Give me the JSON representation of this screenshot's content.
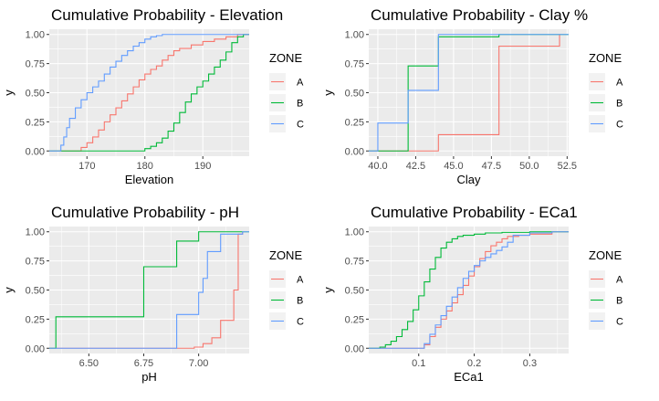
{
  "colors": {
    "A": "#F8766D",
    "B": "#00BA38",
    "C": "#619CFF",
    "panel_bg": "#EBEBEB",
    "grid": "#FFFFFF"
  },
  "chart_data": [
    {
      "type": "line",
      "subtype": "ecdf-step",
      "title": "Cumulative Probability - Elevation",
      "xlabel": "Elevation",
      "ylabel": "y",
      "xlim": [
        163.5,
        198
      ],
      "ylim": [
        0,
        1
      ],
      "xticks": [
        170,
        180,
        190
      ],
      "xtick_labels": [
        "170",
        "180",
        "190"
      ],
      "yticks": [
        0,
        0.25,
        0.5,
        0.75,
        1
      ],
      "ytick_labels": [
        "0.00",
        "0.25",
        "0.50",
        "0.75",
        "1.00"
      ],
      "legend_title": "ZONE",
      "series": [
        {
          "name": "A",
          "x": [
            163.5,
            168,
            169,
            170,
            171,
            172,
            173,
            174,
            175,
            176,
            177,
            178,
            179,
            180,
            181,
            182,
            183,
            184,
            185,
            186,
            188,
            190,
            192,
            194,
            196,
            198
          ],
          "values": [
            0,
            0,
            0.03,
            0.07,
            0.12,
            0.18,
            0.25,
            0.31,
            0.37,
            0.43,
            0.49,
            0.55,
            0.61,
            0.66,
            0.7,
            0.73,
            0.78,
            0.82,
            0.86,
            0.88,
            0.91,
            0.94,
            0.96,
            0.98,
            1.0,
            1.0
          ]
        },
        {
          "name": "B",
          "x": [
            163.5,
            178,
            180,
            181,
            182,
            183,
            184,
            185,
            186,
            187,
            188,
            189,
            190,
            191,
            192,
            193,
            194,
            195,
            196,
            197,
            198
          ],
          "values": [
            0,
            0,
            0.02,
            0.04,
            0.07,
            0.11,
            0.17,
            0.24,
            0.33,
            0.42,
            0.49,
            0.55,
            0.6,
            0.66,
            0.72,
            0.78,
            0.85,
            0.93,
            0.98,
            1.0,
            1.0
          ]
        },
        {
          "name": "C",
          "x": [
            163.5,
            164.8,
            165.5,
            166,
            166.5,
            167,
            168,
            169,
            170,
            171,
            172,
            173,
            174,
            175,
            176,
            177,
            178,
            179,
            180,
            181,
            182,
            183,
            184,
            198
          ],
          "values": [
            0,
            0,
            0.05,
            0.12,
            0.2,
            0.28,
            0.37,
            0.44,
            0.5,
            0.55,
            0.6,
            0.66,
            0.72,
            0.77,
            0.82,
            0.86,
            0.9,
            0.93,
            0.96,
            0.98,
            0.99,
            1.0,
            1.0,
            1.0
          ]
        }
      ]
    },
    {
      "type": "line",
      "subtype": "ecdf-step",
      "title": "Cumulative Probability - Clay %",
      "xlabel": "Clay",
      "ylabel": "y",
      "xlim": [
        39.4,
        52.6
      ],
      "ylim": [
        0,
        1
      ],
      "xticks": [
        40,
        42.5,
        45,
        47.5,
        50,
        52.5
      ],
      "xtick_labels": [
        "40.0",
        "42.5",
        "45.0",
        "47.5",
        "50.0",
        "52.5"
      ],
      "yticks": [
        0,
        0.25,
        0.5,
        0.75,
        1
      ],
      "ytick_labels": [
        "0.00",
        "0.25",
        "0.50",
        "0.75",
        "1.00"
      ],
      "legend_title": "ZONE",
      "series": [
        {
          "name": "A",
          "x": [
            39.4,
            44,
            44,
            48,
            48,
            52,
            52
          ],
          "values": [
            0,
            0,
            0.14,
            0.14,
            0.9,
            0.9,
            1.0
          ]
        },
        {
          "name": "B",
          "x": [
            39.4,
            42,
            42,
            44,
            44,
            48,
            48,
            52.6
          ],
          "values": [
            0,
            0,
            0.73,
            0.73,
            0.98,
            0.98,
            1.0,
            1.0
          ]
        },
        {
          "name": "C",
          "x": [
            39.4,
            40,
            40,
            42,
            42,
            44,
            44,
            52.6
          ],
          "values": [
            0,
            0,
            0.24,
            0.24,
            0.52,
            0.52,
            1.0,
            1.0
          ]
        }
      ]
    },
    {
      "type": "line",
      "subtype": "ecdf-step",
      "title": "Cumulative Probability - pH",
      "xlabel": "pH",
      "ylabel": "y",
      "xlim": [
        6.32,
        7.23
      ],
      "ylim": [
        0,
        1
      ],
      "xticks": [
        6.5,
        6.75,
        7.0
      ],
      "xtick_labels": [
        "6.50",
        "6.75",
        "7.00"
      ],
      "yticks": [
        0,
        0.25,
        0.5,
        0.75,
        1
      ],
      "ytick_labels": [
        "0.00",
        "0.25",
        "0.50",
        "0.75",
        "1.00"
      ],
      "legend_title": "ZONE",
      "series": [
        {
          "name": "A",
          "x": [
            6.32,
            6.98,
            6.98,
            7.02,
            7.02,
            7.06,
            7.06,
            7.1,
            7.1,
            7.16,
            7.16,
            7.18,
            7.18,
            7.2,
            7.2
          ],
          "values": [
            0,
            0,
            0.01,
            0.01,
            0.04,
            0.04,
            0.09,
            0.09,
            0.24,
            0.24,
            0.5,
            0.5,
            0.98,
            0.98,
            1.0
          ]
        },
        {
          "name": "B",
          "x": [
            6.32,
            6.35,
            6.35,
            6.75,
            6.75,
            6.9,
            6.9,
            7.0,
            7.0,
            7.23
          ],
          "values": [
            0,
            0,
            0.27,
            0.27,
            0.7,
            0.7,
            0.92,
            0.92,
            1.0,
            1.0
          ]
        },
        {
          "name": "C",
          "x": [
            6.32,
            6.9,
            6.9,
            7.0,
            7.0,
            7.02,
            7.02,
            7.04,
            7.04,
            7.1,
            7.1,
            7.2,
            7.2,
            7.23
          ],
          "values": [
            0,
            0,
            0.29,
            0.29,
            0.48,
            0.48,
            0.6,
            0.6,
            0.83,
            0.83,
            0.98,
            0.98,
            1.0,
            1.0
          ]
        }
      ]
    },
    {
      "type": "line",
      "subtype": "ecdf-step",
      "title": "Cumulative Probability - ECa1",
      "xlabel": "ECa1",
      "ylabel": "y",
      "xlim": [
        0.01,
        0.37
      ],
      "ylim": [
        0,
        1
      ],
      "xticks": [
        0.1,
        0.2,
        0.3
      ],
      "xtick_labels": [
        "0.1",
        "0.2",
        "0.3"
      ],
      "yticks": [
        0,
        0.25,
        0.5,
        0.75,
        1
      ],
      "ytick_labels": [
        "0.00",
        "0.25",
        "0.50",
        "0.75",
        "1.00"
      ],
      "legend_title": "ZONE",
      "series": [
        {
          "name": "A",
          "x": [
            0.01,
            0.105,
            0.11,
            0.12,
            0.13,
            0.14,
            0.15,
            0.16,
            0.17,
            0.18,
            0.19,
            0.2,
            0.21,
            0.22,
            0.23,
            0.24,
            0.25,
            0.26,
            0.28,
            0.3,
            0.34,
            0.37
          ],
          "values": [
            0,
            0,
            0.03,
            0.1,
            0.18,
            0.25,
            0.32,
            0.39,
            0.46,
            0.54,
            0.62,
            0.7,
            0.77,
            0.83,
            0.88,
            0.91,
            0.94,
            0.96,
            0.97,
            0.98,
            1.0,
            1.0
          ]
        },
        {
          "name": "B",
          "x": [
            0.01,
            0.02,
            0.03,
            0.04,
            0.05,
            0.06,
            0.07,
            0.08,
            0.09,
            0.1,
            0.11,
            0.12,
            0.13,
            0.14,
            0.15,
            0.16,
            0.17,
            0.18,
            0.2,
            0.22,
            0.25,
            0.3,
            0.37
          ],
          "values": [
            0,
            0,
            0.01,
            0.03,
            0.06,
            0.1,
            0.16,
            0.23,
            0.33,
            0.45,
            0.57,
            0.68,
            0.78,
            0.86,
            0.91,
            0.94,
            0.96,
            0.97,
            0.98,
            0.99,
            0.995,
            1.0,
            1.0
          ]
        },
        {
          "name": "C",
          "x": [
            0.01,
            0.105,
            0.11,
            0.12,
            0.13,
            0.14,
            0.15,
            0.16,
            0.17,
            0.18,
            0.19,
            0.2,
            0.21,
            0.22,
            0.23,
            0.24,
            0.25,
            0.26,
            0.27,
            0.3,
            0.34,
            0.37
          ],
          "values": [
            0,
            0,
            0.04,
            0.12,
            0.2,
            0.28,
            0.36,
            0.44,
            0.52,
            0.6,
            0.66,
            0.71,
            0.75,
            0.78,
            0.81,
            0.84,
            0.87,
            0.91,
            0.97,
            0.99,
            1.0,
            1.0
          ]
        }
      ]
    }
  ]
}
